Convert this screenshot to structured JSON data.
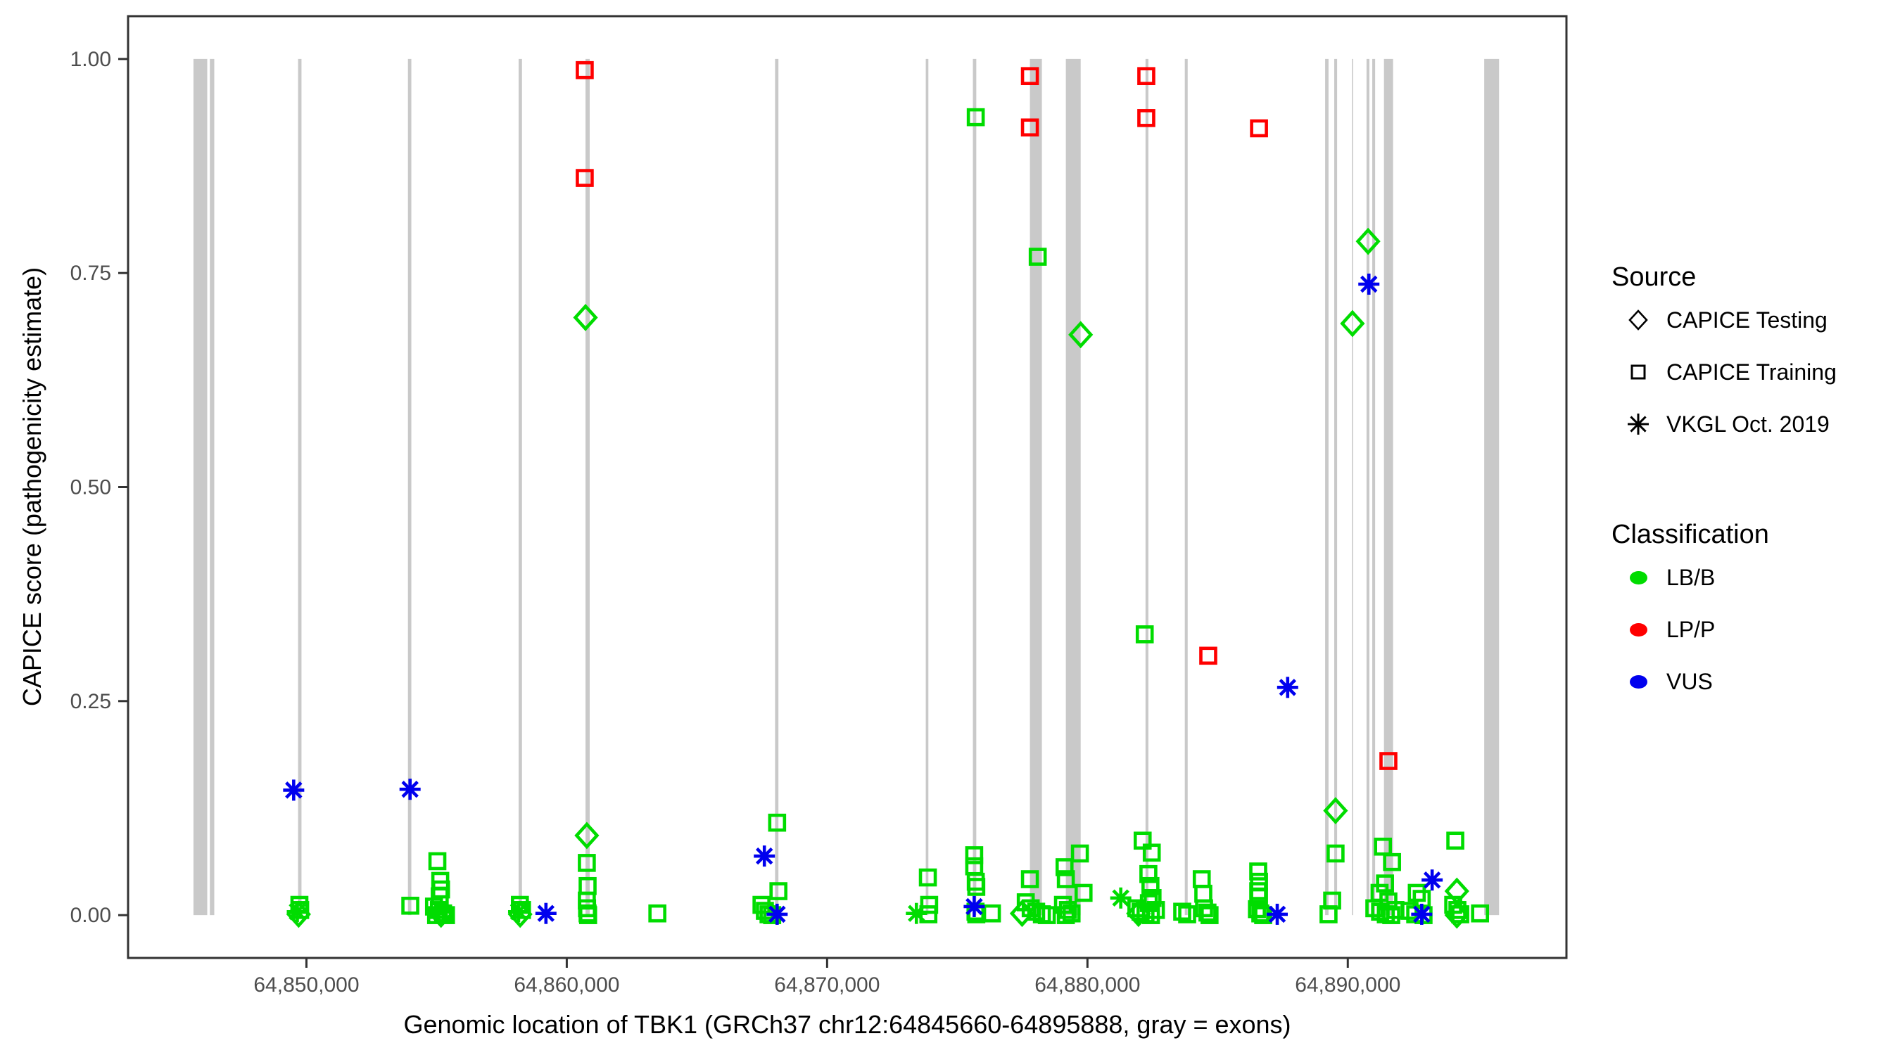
{
  "figure": {
    "x_axis_title": "Genomic location of TBK1 (GRCh37 chr12:64845660-64895888, gray = exons)",
    "y_axis_title": "CAPICE score (pathogenicity estimate)"
  },
  "legend": {
    "source": {
      "title": "Source",
      "items": [
        {
          "symbol": "diamond-icon",
          "label": "CAPICE Testing"
        },
        {
          "symbol": "square-icon",
          "label": "CAPICE Training"
        },
        {
          "symbol": "asterisk-icon",
          "label": "VKGL Oct. 2019"
        }
      ]
    },
    "classification": {
      "title": "Classification",
      "items": [
        {
          "color": "#00DC00",
          "label": "LB/B"
        },
        {
          "color": "#FF0000",
          "label": "LP/P"
        },
        {
          "color": "#0000EE",
          "label": "VUS"
        }
      ]
    }
  },
  "chart_data": {
    "type": "scatter",
    "title": "",
    "xlabel": "Genomic location of TBK1 (GRCh37 chr12:64845660-64895888, gray = exons)",
    "ylabel": "CAPICE score (pathogenicity estimate)",
    "x_range": [
      64843149,
      64898399
    ],
    "y_range": [
      -0.05,
      1.05
    ],
    "grid": false,
    "legend_position": "right",
    "x_ticks": [
      {
        "value": 64850000,
        "label": "64,850,000"
      },
      {
        "value": 64860000,
        "label": "64,860,000"
      },
      {
        "value": 64870000,
        "label": "64,870,000"
      },
      {
        "value": 64880000,
        "label": "64,880,000"
      },
      {
        "value": 64890000,
        "label": "64,890,000"
      }
    ],
    "y_ticks": [
      {
        "value": 0.0,
        "label": "0.00"
      },
      {
        "value": 0.25,
        "label": "0.25"
      },
      {
        "value": 0.5,
        "label": "0.50"
      },
      {
        "value": 0.75,
        "label": "0.75"
      },
      {
        "value": 1.0,
        "label": "1.00"
      }
    ],
    "exon_color": "#C9C9C9",
    "exons": [
      [
        64845660,
        64846190
      ],
      [
        64846290,
        64846460
      ],
      [
        64849680,
        64849810
      ],
      [
        64853900,
        64854030
      ],
      [
        64858150,
        64858280
      ],
      [
        64860720,
        64860880
      ],
      [
        64868000,
        64868130
      ],
      [
        64873790,
        64873890
      ],
      [
        64875600,
        64875730
      ],
      [
        64877790,
        64878250
      ],
      [
        64879170,
        64879740
      ],
      [
        64882230,
        64882340
      ],
      [
        64883740,
        64883850
      ],
      [
        64889130,
        64889260
      ],
      [
        64889480,
        64889590
      ],
      [
        64890160,
        64890200
      ],
      [
        64890720,
        64890830
      ],
      [
        64890940,
        64891050
      ],
      [
        64891390,
        64891740
      ],
      [
        64895240,
        64895810
      ]
    ],
    "colors": {
      "LB/B": "#00DC00",
      "LP/P": "#FF0000",
      "VUS": "#0000EE"
    },
    "point_fields": [
      "genomic_position",
      "capice_score",
      "source",
      "classification"
    ],
    "points": [
      [
        64860690,
        0.987,
        "training",
        "LP/P"
      ],
      [
        64860690,
        0.861,
        "training",
        "LP/P"
      ],
      [
        64860720,
        0.698,
        "testing",
        "LB/B"
      ],
      [
        64875710,
        0.932,
        "training",
        "LB/B"
      ],
      [
        64877790,
        0.98,
        "training",
        "LP/P"
      ],
      [
        64877790,
        0.92,
        "training",
        "LP/P"
      ],
      [
        64878090,
        0.769,
        "training",
        "LB/B"
      ],
      [
        64879740,
        0.678,
        "testing",
        "LB/B"
      ],
      [
        64882260,
        0.98,
        "training",
        "LP/P"
      ],
      [
        64882260,
        0.931,
        "training",
        "LP/P"
      ],
      [
        64882200,
        0.328,
        "training",
        "LB/B"
      ],
      [
        64884640,
        0.303,
        "training",
        "LP/P"
      ],
      [
        64886590,
        0.919,
        "training",
        "LP/P"
      ],
      [
        64887690,
        0.266,
        "vkgl",
        "VUS"
      ],
      [
        64890780,
        0.787,
        "testing",
        "LB/B"
      ],
      [
        64890810,
        0.737,
        "vkgl",
        "VUS"
      ],
      [
        64890180,
        0.691,
        "testing",
        "LB/B"
      ],
      [
        64889530,
        0.122,
        "testing",
        "LB/B"
      ],
      [
        64891560,
        0.18,
        "training",
        "LP/P"
      ],
      [
        64849510,
        0.146,
        "vkgl",
        "VUS"
      ],
      [
        64853980,
        0.147,
        "vkgl",
        "VUS"
      ],
      [
        64849730,
        0.012,
        "training",
        "LB/B"
      ],
      [
        64849650,
        0.004,
        "vkgl",
        "LB/B"
      ],
      [
        64849700,
        0.001,
        "testing",
        "LB/B"
      ],
      [
        64849760,
        0.006,
        "training",
        "LB/B"
      ],
      [
        64853990,
        0.011,
        "training",
        "LB/B"
      ],
      [
        64855030,
        0.063,
        "training",
        "LB/B"
      ],
      [
        64855140,
        0.04,
        "training",
        "LB/B"
      ],
      [
        64855170,
        0.03,
        "training",
        "LB/B"
      ],
      [
        64855120,
        0.022,
        "training",
        "LB/B"
      ],
      [
        64854900,
        0.01,
        "training",
        "LB/B"
      ],
      [
        64855090,
        0.006,
        "training",
        "LB/B"
      ],
      [
        64855250,
        0.002,
        "training",
        "LB/B"
      ],
      [
        64855360,
        0.0,
        "training",
        "LB/B"
      ],
      [
        64855170,
        0.001,
        "testing",
        "LB/B"
      ],
      [
        64854980,
        0.0,
        "training",
        "LB/B"
      ],
      [
        64858200,
        0.012,
        "training",
        "LB/B"
      ],
      [
        64858150,
        0.004,
        "vkgl",
        "LB/B"
      ],
      [
        64858210,
        0.001,
        "testing",
        "LB/B"
      ],
      [
        64858280,
        0.006,
        "training",
        "LB/B"
      ],
      [
        64859200,
        0.002,
        "vkgl",
        "VUS"
      ],
      [
        64860770,
        0.093,
        "testing",
        "LB/B"
      ],
      [
        64860770,
        0.061,
        "training",
        "LB/B"
      ],
      [
        64860800,
        0.034,
        "training",
        "LB/B"
      ],
      [
        64860770,
        0.017,
        "training",
        "LB/B"
      ],
      [
        64860780,
        0.008,
        "training",
        "LB/B"
      ],
      [
        64860800,
        0.002,
        "training",
        "LB/B"
      ],
      [
        64860820,
        0.0,
        "training",
        "LB/B"
      ],
      [
        64863480,
        0.002,
        "training",
        "LB/B"
      ],
      [
        64868080,
        0.108,
        "training",
        "LB/B"
      ],
      [
        64867590,
        0.069,
        "vkgl",
        "VUS"
      ],
      [
        64868130,
        0.028,
        "training",
        "LB/B"
      ],
      [
        64867480,
        0.012,
        "training",
        "LB/B"
      ],
      [
        64867610,
        0.005,
        "training",
        "LB/B"
      ],
      [
        64867750,
        0.001,
        "training",
        "LB/B"
      ],
      [
        64868080,
        0.001,
        "vkgl",
        "VUS"
      ],
      [
        64867890,
        0.0,
        "training",
        "LB/B"
      ],
      [
        64873870,
        0.044,
        "training",
        "LB/B"
      ],
      [
        64873430,
        0.002,
        "vkgl",
        "LB/B"
      ],
      [
        64873920,
        0.012,
        "training",
        "LB/B"
      ],
      [
        64873890,
        0.001,
        "training",
        "LB/B"
      ],
      [
        64875650,
        0.07,
        "training",
        "LB/B"
      ],
      [
        64875650,
        0.057,
        "training",
        "LB/B"
      ],
      [
        64875710,
        0.039,
        "training",
        "LB/B"
      ],
      [
        64875730,
        0.033,
        "training",
        "LB/B"
      ],
      [
        64875650,
        0.01,
        "vkgl",
        "VUS"
      ],
      [
        64875730,
        0.001,
        "training",
        "LB/B"
      ],
      [
        64875700,
        0.004,
        "training",
        "LB/B"
      ],
      [
        64876330,
        0.002,
        "training",
        "LB/B"
      ],
      [
        64877790,
        0.042,
        "training",
        "LB/B"
      ],
      [
        64877630,
        0.015,
        "training",
        "LB/B"
      ],
      [
        64877820,
        0.008,
        "training",
        "LB/B"
      ],
      [
        64878030,
        0.004,
        "training",
        "LB/B"
      ],
      [
        64878250,
        0.001,
        "training",
        "LB/B"
      ],
      [
        64878440,
        0.0,
        "training",
        "LB/B"
      ],
      [
        64877490,
        0.002,
        "testing",
        "LB/B"
      ],
      [
        64879710,
        0.072,
        "training",
        "LB/B"
      ],
      [
        64879120,
        0.056,
        "training",
        "LB/B"
      ],
      [
        64879170,
        0.042,
        "training",
        "LB/B"
      ],
      [
        64879850,
        0.026,
        "training",
        "LB/B"
      ],
      [
        64879060,
        0.012,
        "training",
        "LB/B"
      ],
      [
        64879250,
        0.006,
        "training",
        "LB/B"
      ],
      [
        64879390,
        0.002,
        "training",
        "LB/B"
      ],
      [
        64879170,
        0.0,
        "training",
        "LB/B"
      ],
      [
        64881280,
        0.02,
        "vkgl",
        "LB/B"
      ],
      [
        64882120,
        0.087,
        "training",
        "LB/B"
      ],
      [
        64882470,
        0.073,
        "training",
        "LB/B"
      ],
      [
        64882340,
        0.048,
        "training",
        "LB/B"
      ],
      [
        64882420,
        0.034,
        "training",
        "LB/B"
      ],
      [
        64882500,
        0.02,
        "training",
        "LB/B"
      ],
      [
        64882360,
        0.014,
        "training",
        "LB/B"
      ],
      [
        64881880,
        0.008,
        "training",
        "LB/B"
      ],
      [
        64882040,
        0.004,
        "training",
        "LB/B"
      ],
      [
        64882230,
        0.001,
        "training",
        "LB/B"
      ],
      [
        64882440,
        0.0,
        "training",
        "LB/B"
      ],
      [
        64882630,
        0.006,
        "training",
        "LB/B"
      ],
      [
        64881960,
        0.002,
        "testing",
        "LB/B"
      ],
      [
        64883640,
        0.004,
        "training",
        "LB/B"
      ],
      [
        64883830,
        0.001,
        "training",
        "LB/B"
      ],
      [
        64884390,
        0.042,
        "training",
        "LB/B"
      ],
      [
        64884450,
        0.025,
        "training",
        "LB/B"
      ],
      [
        64884480,
        0.008,
        "training",
        "LB/B"
      ],
      [
        64884610,
        0.003,
        "training",
        "LB/B"
      ],
      [
        64884690,
        0.0,
        "training",
        "LB/B"
      ],
      [
        64886560,
        0.051,
        "training",
        "LB/B"
      ],
      [
        64886590,
        0.039,
        "training",
        "LB/B"
      ],
      [
        64886560,
        0.028,
        "training",
        "LB/B"
      ],
      [
        64886590,
        0.021,
        "training",
        "LB/B"
      ],
      [
        64886510,
        0.007,
        "training",
        "LB/B"
      ],
      [
        64886640,
        0.002,
        "training",
        "LB/B"
      ],
      [
        64886750,
        0.0,
        "training",
        "LB/B"
      ],
      [
        64887290,
        0.001,
        "vkgl",
        "VUS"
      ],
      [
        64889530,
        0.072,
        "training",
        "LB/B"
      ],
      [
        64889400,
        0.017,
        "training",
        "LB/B"
      ],
      [
        64889260,
        0.001,
        "training",
        "LB/B"
      ],
      [
        64891350,
        0.08,
        "training",
        "LB/B"
      ],
      [
        64891700,
        0.062,
        "training",
        "LB/B"
      ],
      [
        64891430,
        0.037,
        "training",
        "LB/B"
      ],
      [
        64891220,
        0.026,
        "training",
        "LB/B"
      ],
      [
        64891560,
        0.016,
        "training",
        "LB/B"
      ],
      [
        64891020,
        0.008,
        "training",
        "LB/B"
      ],
      [
        64891240,
        0.004,
        "training",
        "LB/B"
      ],
      [
        64891460,
        0.001,
        "training",
        "LB/B"
      ],
      [
        64891670,
        0.0,
        "training",
        "LB/B"
      ],
      [
        64891830,
        0.006,
        "training",
        "LB/B"
      ],
      [
        64892650,
        0.026,
        "training",
        "LB/B"
      ],
      [
        64892840,
        0.019,
        "training",
        "LB/B"
      ],
      [
        64892370,
        0.005,
        "training",
        "LB/B"
      ],
      [
        64892590,
        0.001,
        "training",
        "LB/B"
      ],
      [
        64892910,
        0.0,
        "training",
        "LB/B"
      ],
      [
        64892840,
        0.001,
        "vkgl",
        "VUS"
      ],
      [
        64893240,
        0.041,
        "vkgl",
        "VUS"
      ],
      [
        64894130,
        0.087,
        "training",
        "LB/B"
      ],
      [
        64894190,
        0.028,
        "testing",
        "LB/B"
      ],
      [
        64894050,
        0.012,
        "training",
        "LB/B"
      ],
      [
        64894210,
        0.006,
        "training",
        "LB/B"
      ],
      [
        64894320,
        0.001,
        "training",
        "LB/B"
      ],
      [
        64894190,
        0.0,
        "testing",
        "LB/B"
      ],
      [
        64895080,
        0.002,
        "training",
        "LB/B"
      ]
    ]
  }
}
